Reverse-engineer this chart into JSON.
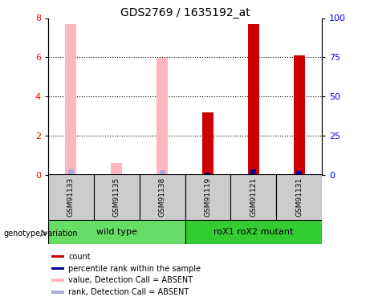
{
  "title": "GDS2769 / 1635192_at",
  "samples": [
    "GSM91133",
    "GSM91135",
    "GSM91138",
    "GSM91119",
    "GSM91121",
    "GSM91131"
  ],
  "count_values": [
    0,
    0,
    0,
    3.2,
    7.7,
    6.1
  ],
  "count_absent": [
    true,
    true,
    true,
    false,
    false,
    false
  ],
  "value_absent": [
    7.7,
    0.6,
    5.95,
    0,
    0,
    0
  ],
  "rank_absent_val": [
    3.5,
    0,
    3.0,
    0,
    0,
    0
  ],
  "rank_present_val": [
    0,
    0,
    0,
    1.5,
    3.5,
    2.5
  ],
  "ylim_left": [
    0,
    8
  ],
  "ylim_right": [
    0,
    100
  ],
  "yticks_left": [
    0,
    2,
    4,
    6,
    8
  ],
  "yticks_right": [
    0,
    25,
    50,
    75,
    100
  ],
  "ytick_labels_right": [
    "0",
    "25",
    "50",
    "75",
    "100"
  ],
  "count_color": "#CC0000",
  "count_absent_color": "#FFB6C1",
  "rank_color": "#000099",
  "rank_absent_color": "#AAAADD",
  "bar_width": 0.25,
  "wt_color": "#66DD66",
  "mut_color": "#33CC33",
  "sample_box_color": "#CCCCCC",
  "legend_items": [
    {
      "color": "#CC0000",
      "label": "count"
    },
    {
      "color": "#000099",
      "label": "percentile rank within the sample"
    },
    {
      "color": "#FFB6C1",
      "label": "value, Detection Call = ABSENT"
    },
    {
      "color": "#AAAADD",
      "label": "rank, Detection Call = ABSENT"
    }
  ]
}
